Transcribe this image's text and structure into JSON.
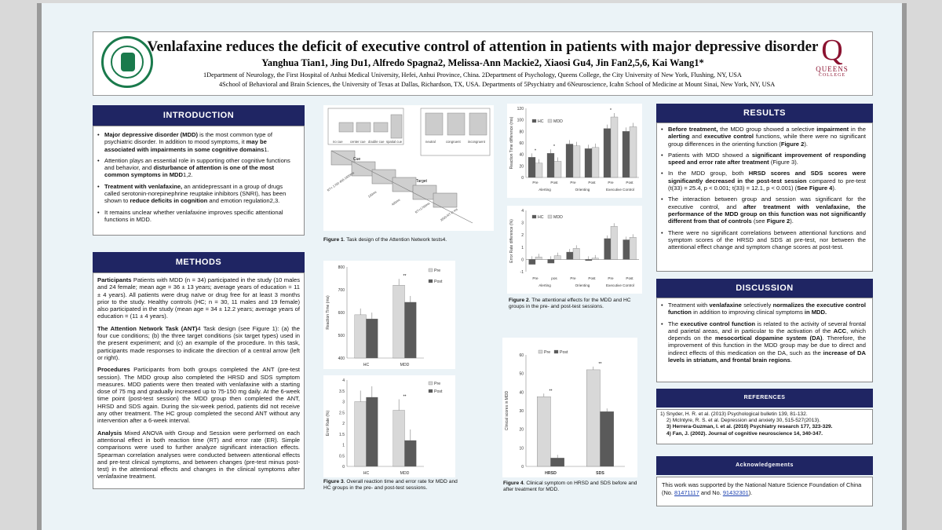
{
  "header": {
    "title": "Venlafaxine reduces the deficit of executive control of attention in patients with major depressive disorder",
    "authors": "Yanghua Tian1, Jing Du1, Alfredo Spagna2, Melissa-Ann Mackie2, Xiaosi Gu4, Jin Fan2,5,6, Kai Wang1*",
    "affiliation_1": "1Department of Neurology, the First Hospital of Anhui Medical University, Hefei, Anhui Province, China.       2Department of Psychology, Queens College, the City University of New York, Flushing, NY, USA",
    "affiliation_2": "4School of Behavioral and Brain Sciences, the University of Texas at Dallas, Richardson, TX, USA.       Departments of 5Psychiatry and 6Neuroscience, Icahn School of Medicine at Mount Sinai, New York, NY, USA",
    "logo_text_1": "QUEENS",
    "logo_text_2": "COLLEGE",
    "logo_letter": "Q"
  },
  "intro": {
    "heading": "INTRODUCTION",
    "items": [
      {
        "a": "Major depressive disorder (MDD)",
        "b": " is the most common type of psychiatric disorder. In addition to mood symptoms, it ",
        "c": "may be associated with impairments in some cognitive domains",
        "d": "1."
      },
      {
        "a": "",
        "b": "Attention plays an essential role in supporting other cognitive functions and behavior, and ",
        "c": "disturbance of attention is one of the most common symptoms in MDD",
        "d": "1,2."
      },
      {
        "a": "Treatment with venlafaxine,",
        "b": " an antidepressant in a group of drugs called serotonin-norepinephrine reuptake inhibitors (SNRI), has been shown to ",
        "c": "reduce deficits in cognition",
        "d": " and emotion regulation2,3."
      },
      {
        "a": "",
        "b": "It remains unclear whether venlafaxine improves specific attentional functions in MDD.",
        "c": "",
        "d": ""
      }
    ]
  },
  "methods": {
    "heading": "METHODS",
    "paras": [
      {
        "lead": "Participants",
        "text": " Patients with MDD (n = 34) participated in the study (10 males and 24 female; mean age = 36 ± 13 years; average years of education = 11 ± 4 years). All patients were drug naïve or drug free for at least 3 months prior to the study. Healthy controls (HC; n = 30, 11 males and 19 female) also participated in the study (mean age = 34 ± 12.2 years; average years of education = (11 ± 4 years)."
      },
      {
        "lead": "The Attention Network Task (ANT)",
        "text": "4  Task design (see Figure 1): (a) the four cue conditions; (b) the three target conditions (six target types) used in the present experiment; and (c) an example of the procedure. In this task, participants made responses to indicate the direction of a central arrow (left or right)."
      },
      {
        "lead": "Procedures",
        "text": " Participants from both groups completed the ANT (pre-test session). The MDD group also completed the HRSD and SDS symptom measures. MDD patients were then treated with venlafaxine with a starting dose of 75 mg and gradually increased up to 75-150 mg daily. At the 6-week time point (post-test session) the MDD group then completed the ANT, HRSD and SDS again. During the six-week period, patients did not receive any other treatment. The HC group completed the second ANT without any intervention after a 6-week interval."
      },
      {
        "lead": "Analysis",
        "text": " Mixed ANOVA with Group and Session were performed on each attentional effect in both reaction time (RT) and error rate (ER). Simple comparisons were used to further analyze significant interaction effects. Spearman correlation analyses were conducted between attentional effects and pre-test clinical symptoms, and between changes (pre-test minus post-test) in the attentional effects and changes in the clinical symptoms after venlafaxine treatment."
      }
    ]
  },
  "figure1": {
    "caption_lead": "Figure 1",
    "caption": ". Task design of the Attention Network tests4.",
    "cue_labels": [
      "no cue",
      "center cue",
      "double cue",
      "spatial cue"
    ],
    "target_labels": [
      "neutral",
      "congruent",
      "incongruent"
    ],
    "cue_word": "Cue",
    "target_word": "Target",
    "step_labels": [
      "RT< 1700 400-1600ms",
      "100ms",
      "400ms",
      "RT<1700ms",
      "3500-RT-D ms"
    ]
  },
  "figure2": {
    "caption_lead": "Figure 2",
    "caption": ". The attentional effects for the MDD and HC groups in the pre- and post-test sessions.",
    "groups": [
      "Alerting",
      "Orienting",
      "Executive Control"
    ],
    "tick_labels_rt": [
      "Pre",
      "Post",
      "Pre",
      "Post",
      "Pre",
      "Post"
    ],
    "tick_labels_er": [
      "Pre",
      "pos",
      "Pre",
      "Post",
      "Pre",
      "Post"
    ]
  },
  "figure3": {
    "caption_lead": "Figure 3",
    "caption": ". Overall reaction time and error rate for MDD and HC groups in the pre- and post-test sessions."
  },
  "figure4": {
    "caption_lead": "Figure 4",
    "caption": ". Clinical symptom on HRSD and SDS before and after treatment for MDD."
  },
  "results": {
    "heading": "RESULTS",
    "items": [
      [
        {
          "t": "Before treatment,",
          "b": true
        },
        {
          "t": " the MDD group showed a selective ",
          "b": false
        },
        {
          "t": "impairment",
          "b": true
        },
        {
          "t": " in the ",
          "b": false
        },
        {
          "t": "alerting",
          "b": true
        },
        {
          "t": " and ",
          "b": false
        },
        {
          "t": "executive control",
          "b": true
        },
        {
          "t": " functions, while there were no significant group differences in the orienting function (",
          "b": false
        },
        {
          "t": "Figure 2",
          "b": true
        },
        {
          "t": ").",
          "b": false
        }
      ],
      [
        {
          "t": "Patients with MDD showed a ",
          "b": false
        },
        {
          "t": "significant improvement of responding speed and error rate after treatment",
          "b": true
        },
        {
          "t": " (Figure 3).",
          "b": false
        }
      ],
      [
        {
          "t": "In the MDD group, both ",
          "b": false
        },
        {
          "t": "HRSD scores and SDS scores were significantly decreased in the post-test session",
          "b": true
        },
        {
          "t": " compared to pre-test (t(33) = 25.4, p < 0.001; t(33) = 12.1, p < 0.001) (",
          "b": false
        },
        {
          "t": "See Figure 4",
          "b": true
        },
        {
          "t": ").",
          "b": false
        }
      ],
      [
        {
          "t": "The interaction between group and session was significant for the executive control, and ",
          "b": false
        },
        {
          "t": "after treatment with venlafaxine, the performance of the MDD group on this function was not significantly different from that of controls",
          "b": true
        },
        {
          "t": " (see ",
          "b": false
        },
        {
          "t": "Figure 2",
          "b": true
        },
        {
          "t": ").",
          "b": false
        }
      ],
      [
        {
          "t": "There were no significant correlations between attentional functions and symptom scores of the HRSD and SDS at pre-test, nor between the attentional effect change and symptom change scores at post-test.",
          "b": false
        }
      ]
    ]
  },
  "discussion": {
    "heading": "DISCUSSION",
    "items": [
      [
        {
          "t": "Treatment with ",
          "b": false
        },
        {
          "t": "venlafaxine",
          "b": true
        },
        {
          "t": " selectively ",
          "b": false
        },
        {
          "t": "normalizes the executive control function",
          "b": true
        },
        {
          "t": " in addition to improving clinical symptoms ",
          "b": false
        },
        {
          "t": "in MDD.",
          "b": true
        }
      ],
      [
        {
          "t": "The ",
          "b": false
        },
        {
          "t": "executive control function",
          "b": true
        },
        {
          "t": " is related to the activity of several frontal and parietal areas, and in particular to the activation of the ",
          "b": false
        },
        {
          "t": "ACC",
          "b": true
        },
        {
          "t": ", which depends on the ",
          "b": false
        },
        {
          "t": "mesocortical dopamine system (DA)",
          "b": true
        },
        {
          "t": ". Therefore, the improvement of this function in the MDD group may be due to direct and indirect effects of this medication on the DA, such as the ",
          "b": false
        },
        {
          "t": "increase of DA levels in striatum, and frontal brain regions",
          "b": true
        },
        {
          "t": ".",
          "b": false
        }
      ]
    ]
  },
  "references": {
    "heading": "REFERENCES",
    "items": [
      "1)     Snyder, H. R. et al. (2013) Psychological bulletin 139, 81-132.",
      "2) McIntyre, R. S. et al. Depression and anxiety 30, 515-527(2013).",
      "3) Herrera-Guzman, I. et al. (2010) Psychiatry research 177, 323-329.",
      "4) Fan, J. (2002). Journal of cognitive neuroscience 14, 340-347."
    ]
  },
  "ack": {
    "heading": "Acknowledgements",
    "text_1": "This work was supported by the National Nature Science Foundation of China (No. ",
    "grant_1": "81471117",
    "text_2": " and No. ",
    "grant_2": "91432301",
    "text_3": ")."
  },
  "chart_data": [
    {
      "id": "fig2a",
      "type": "bar",
      "title": "",
      "ylabel": "Reaction Time difference (ms)",
      "ylim": [
        0,
        120
      ],
      "yticks": [
        0,
        20,
        40,
        60,
        80,
        100,
        120
      ],
      "categories": [
        "Alerting Pre",
        "Alerting Post",
        "Orienting Pre",
        "Orienting Post",
        "Executive Control Pre",
        "Executive Control Post"
      ],
      "series": [
        {
          "name": "HC",
          "color": "#5a5a5a",
          "values": [
            35,
            42,
            58,
            50,
            85,
            80
          ]
        },
        {
          "name": "MDD",
          "color": "#d8d8d8",
          "values": [
            25,
            28,
            55,
            52,
            105,
            88
          ]
        }
      ],
      "stars": [
        "*",
        "*",
        "",
        "",
        "*",
        ""
      ],
      "legend": "top-left"
    },
    {
      "id": "fig2b",
      "type": "bar",
      "title": "",
      "ylabel": "Error Rate difference (%)",
      "ylim": [
        -1,
        4
      ],
      "yticks": [
        -1,
        0,
        1,
        2,
        3,
        4
      ],
      "categories": [
        "Alerting Pre",
        "Alerting pos",
        "Orienting Pre",
        "Orienting Post",
        "Executive Control Pre",
        "Executive Control Post"
      ],
      "series": [
        {
          "name": "HC",
          "color": "#5a5a5a",
          "values": [
            -0.4,
            -0.3,
            0.6,
            -0.1,
            1.7,
            1.6
          ]
        },
        {
          "name": "MDD",
          "color": "#d8d8d8",
          "values": [
            0.2,
            0.3,
            0.9,
            0.1,
            2.7,
            1.8
          ]
        }
      ],
      "legend": "top-left"
    },
    {
      "id": "fig3a",
      "type": "bar",
      "title": "",
      "ylabel": "Reaction Time (ms)",
      "ylim": [
        400,
        800
      ],
      "yticks": [
        400,
        500,
        600,
        700,
        800
      ],
      "categories": [
        "HC",
        "MDD"
      ],
      "series": [
        {
          "name": "Pre",
          "color": "#d8d8d8",
          "values": [
            590,
            720
          ]
        },
        {
          "name": "Post",
          "color": "#5a5a5a",
          "values": [
            572,
            645
          ]
        }
      ],
      "stars": [
        "",
        "**"
      ],
      "legend": "top-right"
    },
    {
      "id": "fig3b",
      "type": "bar",
      "title": "",
      "ylabel": "Error Rate (%)",
      "ylim": [
        0,
        4
      ],
      "yticks": [
        0,
        0.5,
        1,
        1.5,
        2,
        2.5,
        3,
        3.5,
        4
      ],
      "categories": [
        "HC",
        "MDD"
      ],
      "series": [
        {
          "name": "Pre",
          "color": "#d8d8d8",
          "values": [
            3.0,
            2.6
          ]
        },
        {
          "name": "Post",
          "color": "#5a5a5a",
          "values": [
            3.2,
            1.2
          ]
        }
      ],
      "stars": [
        "",
        "**"
      ],
      "legend": "top-right"
    },
    {
      "id": "fig4",
      "type": "bar",
      "title": "",
      "ylabel": "Clinical scores in MDD",
      "ylim": [
        0,
        60
      ],
      "yticks": [
        0,
        10,
        20,
        30,
        40,
        50,
        60
      ],
      "categories": [
        "HRSD",
        "SDS"
      ],
      "series": [
        {
          "name": "Pre",
          "color": "#d8d8d8",
          "values": [
            37.5,
            52
          ]
        },
        {
          "name": "Post",
          "color": "#5a5a5a",
          "values": [
            4.5,
            29.5
          ]
        }
      ],
      "stars": [
        "**",
        "**"
      ],
      "legend": "top-left"
    }
  ]
}
